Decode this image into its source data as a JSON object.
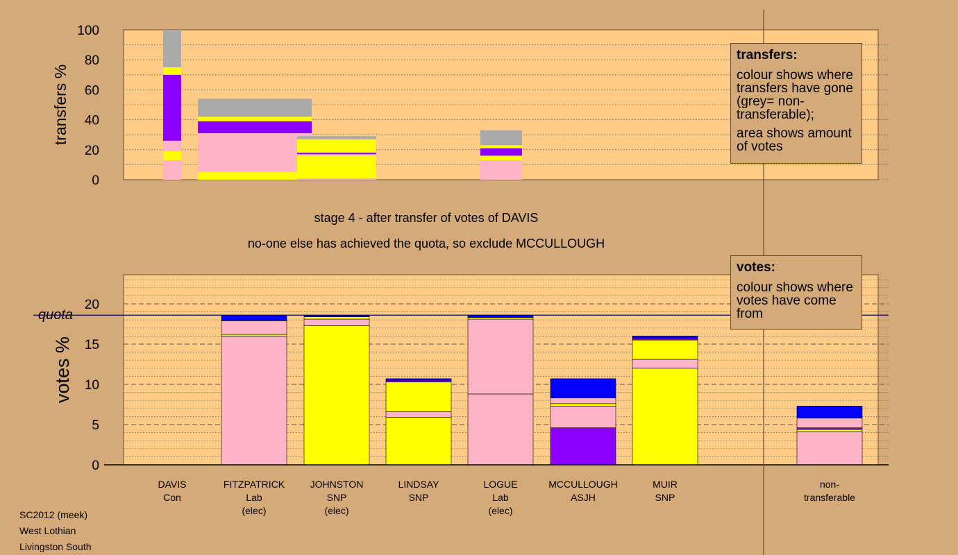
{
  "chart_data": [
    {
      "type": "bar",
      "name": "transfers",
      "ylabel": "transfers %",
      "ylim": [
        0,
        100
      ],
      "yticks": [
        0,
        20,
        40,
        60,
        80,
        100
      ],
      "grid": true,
      "stage_title": "stage 4 - after transfer of votes of DAVIS",
      "stage_note": "no-one else has achieved the quota, so exclude MCCULLOUGH",
      "legend": {
        "title": "transfers:",
        "lines": [
          "colour shows where transfers have gone (grey= non-transferable);",
          "area shows amount of votes"
        ]
      },
      "columns": [
        {
          "segments": [
            {
              "from": 0,
              "to": 13,
              "color": "#ffb3c6"
            },
            {
              "from": 13,
              "to": 19,
              "color": "#ffff00"
            },
            {
              "from": 19,
              "to": 26,
              "color": "#ffb3c6"
            },
            {
              "from": 26,
              "to": 70,
              "color": "#8b00ff"
            },
            {
              "from": 70,
              "to": 75,
              "color": "#ffff00"
            },
            {
              "from": 75,
              "to": 100,
              "color": "#aaaaaa"
            }
          ]
        },
        {
          "segments": [
            {
              "from": 0,
              "to": 5,
              "color": "#ffff00"
            },
            {
              "from": 5,
              "to": 31,
              "color": "#ffb3c6"
            },
            {
              "from": 31,
              "to": 39,
              "color": "#8b00ff"
            },
            {
              "from": 39,
              "to": 42,
              "color": "#ffff00"
            },
            {
              "from": 42,
              "to": 54,
              "color": "#aaaaaa"
            }
          ]
        },
        {
          "segments": [
            {
              "from": 0,
              "to": 1,
              "color": "#ffb3c6"
            },
            {
              "from": 1,
              "to": 16,
              "color": "#ffff00"
            },
            {
              "from": 16,
              "to": 17,
              "color": "#ffb3c6"
            },
            {
              "from": 17,
              "to": 18,
              "color": "#8b00ff"
            },
            {
              "from": 18,
              "to": 27,
              "color": "#ffff00"
            },
            {
              "from": 27,
              "to": 29,
              "color": "#aaaaaa"
            }
          ]
        },
        {
          "segments": []
        },
        {
          "segments": [
            {
              "from": 0,
              "to": 13,
              "color": "#ffb3c6"
            },
            {
              "from": 13,
              "to": 16,
              "color": "#ffff00"
            },
            {
              "from": 16,
              "to": 21,
              "color": "#8b00ff"
            },
            {
              "from": 21,
              "to": 23,
              "color": "#ffff00"
            },
            {
              "from": 23,
              "to": 33,
              "color": "#aaaaaa"
            }
          ]
        },
        {
          "segments": []
        },
        {
          "segments": []
        }
      ]
    },
    {
      "type": "bar",
      "name": "votes",
      "ylabel": "votes %",
      "ylim": [
        0,
        20
      ],
      "yticks": [
        0,
        5,
        10,
        15,
        20
      ],
      "grid": true,
      "quota": 18.6,
      "quota_label": "quota",
      "legend": {
        "title": "votes:",
        "lines": [
          "colour shows where votes have come from"
        ]
      },
      "categories": [
        {
          "name": "DAVIS",
          "party": "Con",
          "note": ""
        },
        {
          "name": "FITZPATRICK",
          "party": "Lab",
          "note": "(elec)"
        },
        {
          "name": "JOHNSTON",
          "party": "SNP",
          "note": "(elec)"
        },
        {
          "name": "LINDSAY",
          "party": "SNP",
          "note": ""
        },
        {
          "name": "LOGUE",
          "party": "Lab",
          "note": "(elec)"
        },
        {
          "name": "MCCULLOUGH",
          "party": "ASJH",
          "note": ""
        },
        {
          "name": "MUIR",
          "party": "SNP",
          "note": ""
        },
        {
          "name": "non-",
          "party": "transferable",
          "note": ""
        }
      ],
      "columns": [
        {
          "segments": []
        },
        {
          "segments": [
            {
              "from": 0,
              "to": 16.0,
              "color": "#ffb3c6"
            },
            {
              "from": 16.0,
              "to": 16.2,
              "color": "#ffff00"
            },
            {
              "from": 16.2,
              "to": 17.9,
              "color": "#ffb3c6"
            },
            {
              "from": 17.9,
              "to": 18.6,
              "color": "#0000ff"
            }
          ]
        },
        {
          "segments": [
            {
              "from": 0,
              "to": 17.3,
              "color": "#ffff00"
            },
            {
              "from": 17.3,
              "to": 18.1,
              "color": "#ffb3c6"
            },
            {
              "from": 18.1,
              "to": 18.4,
              "color": "#ffff00"
            },
            {
              "from": 18.4,
              "to": 18.6,
              "color": "#0000ff"
            }
          ]
        },
        {
          "segments": [
            {
              "from": 0,
              "to": 5.9,
              "color": "#ffff00"
            },
            {
              "from": 5.9,
              "to": 6.6,
              "color": "#ffb3c6"
            },
            {
              "from": 6.6,
              "to": 10.3,
              "color": "#ffff00"
            },
            {
              "from": 10.3,
              "to": 10.5,
              "color": "#8b00ff"
            },
            {
              "from": 10.5,
              "to": 10.7,
              "color": "#0000ff"
            }
          ]
        },
        {
          "segments": [
            {
              "from": 0,
              "to": 8.8,
              "color": "#ffb3c6"
            },
            {
              "from": 8.8,
              "to": 18.1,
              "color": "#ffb3c6"
            },
            {
              "from": 18.1,
              "to": 18.3,
              "color": "#ffff00"
            },
            {
              "from": 18.3,
              "to": 18.6,
              "color": "#0000ff"
            }
          ]
        },
        {
          "segments": [
            {
              "from": 0,
              "to": 4.6,
              "color": "#8b00ff"
            },
            {
              "from": 4.6,
              "to": 7.3,
              "color": "#ffb3c6"
            },
            {
              "from": 7.3,
              "to": 7.6,
              "color": "#ffff00"
            },
            {
              "from": 7.6,
              "to": 8.3,
              "color": "#ffb3c6"
            },
            {
              "from": 8.3,
              "to": 10.7,
              "color": "#0000ff"
            }
          ]
        },
        {
          "segments": [
            {
              "from": 0,
              "to": 12.0,
              "color": "#ffff00"
            },
            {
              "from": 12.0,
              "to": 13.1,
              "color": "#ffb3c6"
            },
            {
              "from": 13.1,
              "to": 15.5,
              "color": "#ffff00"
            },
            {
              "from": 15.5,
              "to": 15.7,
              "color": "#8b00ff"
            },
            {
              "from": 15.7,
              "to": 16.0,
              "color": "#0000ff"
            }
          ]
        },
        {
          "segments": [
            {
              "from": 0,
              "to": 4.1,
              "color": "#ffb3c6"
            },
            {
              "from": 4.1,
              "to": 4.4,
              "color": "#ffff00"
            },
            {
              "from": 4.4,
              "to": 4.6,
              "color": "#8b00ff"
            },
            {
              "from": 4.6,
              "to": 5.8,
              "color": "#ffb3c6"
            },
            {
              "from": 5.8,
              "to": 7.3,
              "color": "#0000ff"
            }
          ]
        }
      ]
    }
  ],
  "footer": {
    "lines": [
      "SC2012 (meek)",
      "West Lothian",
      "Livingston South"
    ]
  }
}
